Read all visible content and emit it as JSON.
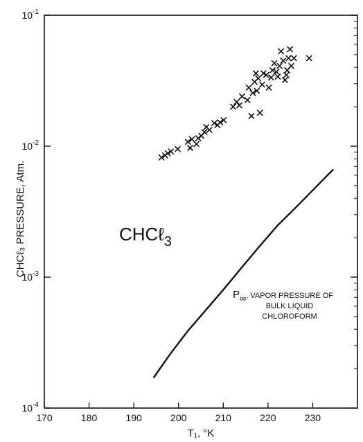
{
  "chart_data": {
    "type": "scatter",
    "xlabel": "T₁, °K",
    "ylabel": "CHCℓ₃ PRESSURE, Atm.",
    "xlim": [
      170,
      240
    ],
    "ylim": [
      0.0001,
      0.1
    ],
    "yscale": "log",
    "xticks": [
      "170",
      "180",
      "190",
      "200",
      "210",
      "220",
      "230"
    ],
    "yticks": [
      {
        "base": "10",
        "exp": "-4",
        "value": 0.0001
      },
      {
        "base": "10",
        "exp": "-3",
        "value": 0.001
      },
      {
        "base": "10",
        "exp": "-2",
        "value": 0.01
      },
      {
        "base": "10",
        "exp": "-1",
        "value": 0.1
      }
    ],
    "grid": false,
    "annotations": {
      "compound_text": "CHCℓ",
      "compound_sub": "3",
      "curve_label_main": "P",
      "curve_label_sub": "∞",
      "curve_label_line1": ", VAPOR PRESSURE OF",
      "curve_label_line2": "BULK LIQUID",
      "curve_label_line3": "CHLOROFORM"
    },
    "series": [
      {
        "marker": "x",
        "points": [
          [
            196.2,
            0.0082
          ],
          [
            197.0,
            0.0085
          ],
          [
            197.6,
            0.0088
          ],
          [
            198.3,
            0.0091
          ],
          [
            199.8,
            0.0095
          ],
          [
            202.1,
            0.0108
          ],
          [
            202.6,
            0.0097
          ],
          [
            203.0,
            0.0113
          ],
          [
            204.0,
            0.0104
          ],
          [
            204.4,
            0.0115
          ],
          [
            205.1,
            0.012
          ],
          [
            205.8,
            0.0128
          ],
          [
            206.2,
            0.014
          ],
          [
            206.9,
            0.0133
          ],
          [
            208.0,
            0.015
          ],
          [
            208.7,
            0.0145
          ],
          [
            209.3,
            0.0152
          ],
          [
            210.1,
            0.0158
          ],
          [
            212.2,
            0.02
          ],
          [
            213.0,
            0.0218
          ],
          [
            213.6,
            0.0205
          ],
          [
            214.2,
            0.024
          ],
          [
            215.4,
            0.0225
          ],
          [
            215.7,
            0.028
          ],
          [
            216.3,
            0.017
          ],
          [
            216.6,
            0.0255
          ],
          [
            217.0,
            0.031
          ],
          [
            217.3,
            0.036
          ],
          [
            217.5,
            0.0265
          ],
          [
            217.8,
            0.033
          ],
          [
            218.2,
            0.018
          ],
          [
            218.7,
            0.0295
          ],
          [
            219.0,
            0.036
          ],
          [
            219.6,
            0.035
          ],
          [
            220.2,
            0.028
          ],
          [
            220.7,
            0.0335
          ],
          [
            221.0,
            0.038
          ],
          [
            221.4,
            0.043
          ],
          [
            221.9,
            0.037
          ],
          [
            222.2,
            0.034
          ],
          [
            222.6,
            0.041
          ],
          [
            222.9,
            0.053
          ],
          [
            223.4,
            0.045
          ],
          [
            223.8,
            0.032
          ],
          [
            224.1,
            0.035
          ],
          [
            224.3,
            0.038
          ],
          [
            224.6,
            0.047
          ],
          [
            224.9,
            0.055
          ],
          [
            225.2,
            0.041
          ],
          [
            225.8,
            0.047
          ],
          [
            229.2,
            0.047
          ]
        ]
      },
      {
        "marker": "line",
        "label": "P∞, VAPOR PRESSURE OF BULK LIQUID CHLOROFORM",
        "points": [
          [
            194.5,
            0.000172
          ],
          [
            198.0,
            0.000255
          ],
          [
            202.0,
            0.000385
          ],
          [
            206.0,
            0.000555
          ],
          [
            210.0,
            0.0008
          ],
          [
            214.0,
            0.00117
          ],
          [
            218.0,
            0.0017
          ],
          [
            222.0,
            0.00245
          ],
          [
            226.0,
            0.00335
          ],
          [
            230.0,
            0.0046
          ],
          [
            234.5,
            0.0066
          ]
        ]
      }
    ]
  }
}
